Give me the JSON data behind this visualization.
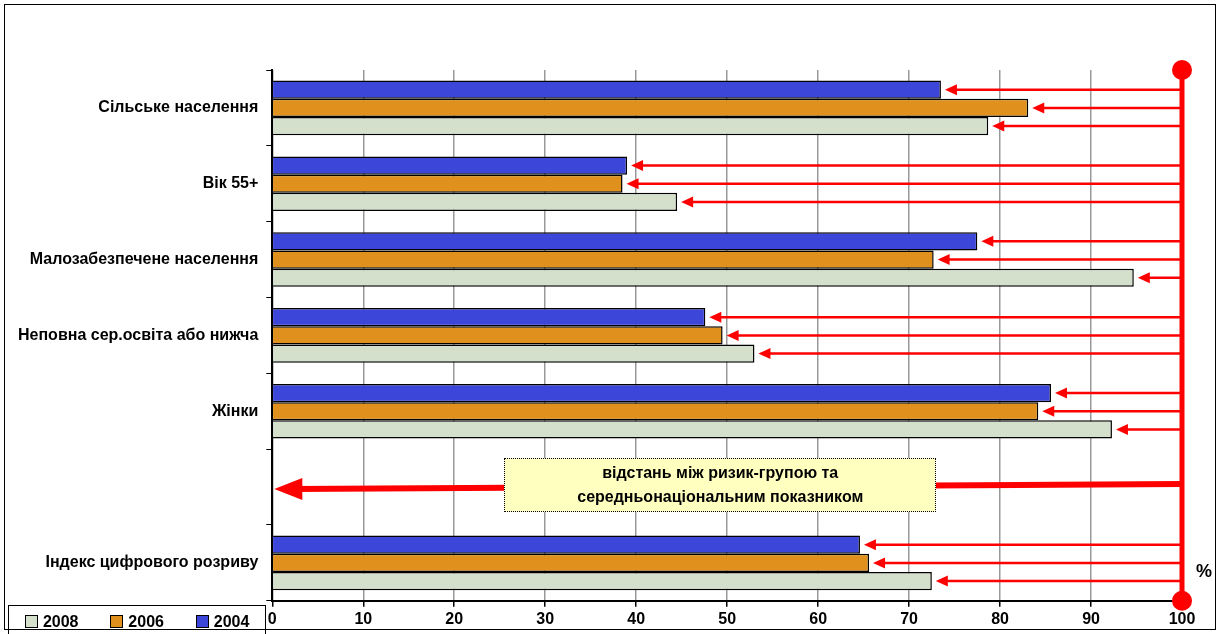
{
  "chart_data": {
    "type": "bar",
    "orientation": "horizontal",
    "xlabel": "%",
    "categories": [
      "Сільське населення",
      "Вік 55+",
      "Малозабезпечене населення",
      "Неповна сер.освіта або нижча",
      "Жінки",
      null,
      "Індекс цифрового розриву"
    ],
    "series": [
      {
        "name": "2004",
        "color": "#3c46d8",
        "values": [
          73.5,
          39.0,
          77.5,
          47.6,
          85.6,
          null,
          64.6
        ]
      },
      {
        "name": "2006",
        "color": "#e0901c",
        "values": [
          83.1,
          38.5,
          72.7,
          49.5,
          84.2,
          null,
          65.6
        ]
      },
      {
        "name": "2008",
        "color": "#d4dfcc",
        "values": [
          78.7,
          44.5,
          94.7,
          53.0,
          92.3,
          null,
          72.5
        ]
      }
    ],
    "xlim": [
      0,
      100
    ],
    "xticks": [
      0,
      10,
      20,
      30,
      40,
      50,
      60,
      70,
      80,
      90,
      100
    ],
    "grid": "x",
    "legend": "bottom left",
    "ref_lines": [
      {
        "axis": "x",
        "value": 100,
        "color": "#ff0000"
      }
    ],
    "annotations": [
      "відстань між ризик-групою та середньонаціональним показником"
    ]
  }
}
